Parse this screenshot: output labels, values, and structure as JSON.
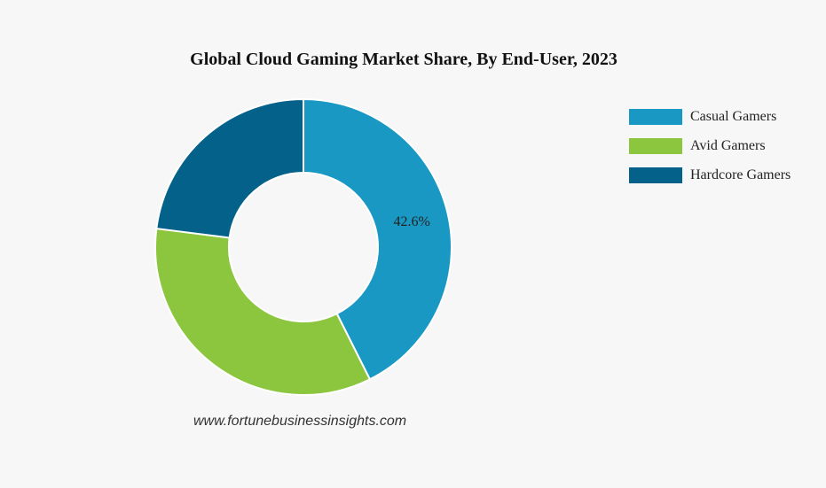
{
  "chart_data": {
    "type": "pie",
    "title": "Global Cloud Gaming Market Share, By End-User, 2023",
    "legend_position": "top-right",
    "donut": true,
    "slices": [
      {
        "name": "Casual Gamers",
        "value": 42.6,
        "color": "#1a98c4",
        "label": "42.6%"
      },
      {
        "name": "Avid Gamers",
        "value": 34.4,
        "color": "#8cc63f",
        "label": ""
      },
      {
        "name": "Hardcore Gamers",
        "value": 23.0,
        "color": "#04628a",
        "label": ""
      }
    ]
  },
  "watermark": "www.fortunebusinessinsights.com"
}
